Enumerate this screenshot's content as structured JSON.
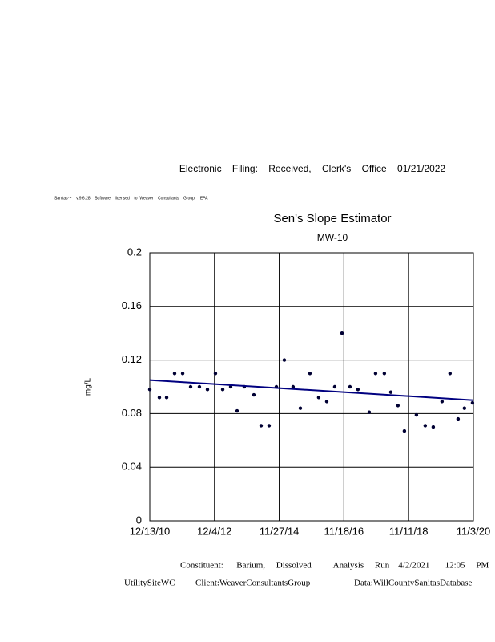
{
  "header": {
    "filing": "Electronic    Filing:    Received,    Clerk's    Office    01/21/2022",
    "license": "Sanitas™    v.9.6.28    Software    licensed    to  Weaver    Consultants    Group.    EPA"
  },
  "chart_data": {
    "type": "scatter",
    "title": "Sen's Slope Estimator",
    "subtitle": "MW-10",
    "y_label": "mg/L",
    "x": [
      "12/13/10",
      "3/30/11",
      "6/19/11",
      "9/16/11",
      "12/15/11",
      "3/13/12",
      "6/19/12",
      "9/17/12",
      "12/15/12",
      "3/6/13",
      "6/3/13",
      "8/14/13",
      "11/2/13",
      "2/17/14",
      "5/9/14",
      "8/6/14",
      "10/26/14",
      "1/23/15",
      "5/1/15",
      "7/21/15",
      "11/5/15",
      "2/11/16",
      "5/11/16",
      "8/8/16",
      "10/28/16",
      "1/25/17",
      "4/24/17",
      "8/28/17",
      "11/7/17",
      "2/13/18",
      "4/26/18",
      "7/15/18",
      "9/25/18",
      "2/6/19",
      "5/15/19",
      "8/13/19",
      "11/19/19",
      "2/16/20",
      "5/16/20",
      "7/26/20",
      "10/24/20"
    ],
    "values": [
      0.098,
      0.092,
      0.092,
      0.11,
      0.11,
      0.1,
      0.1,
      0.098,
      0.11,
      0.098,
      0.1,
      0.082,
      0.1,
      0.094,
      0.071,
      0.071,
      0.1,
      0.12,
      0.1,
      0.084,
      0.11,
      0.092,
      0.089,
      0.1,
      0.14,
      0.1,
      0.098,
      0.081,
      0.11,
      0.11,
      0.096,
      0.086,
      0.067,
      0.079,
      0.071,
      0.07,
      0.089,
      0.11,
      0.076,
      0.084,
      0.088
    ],
    "color": "#000033",
    "trend": {
      "x": [
        "12/13/10",
        "11/3/20"
      ],
      "values": [
        0.105,
        0.09
      ],
      "color": "#000080"
    },
    "xlim": [
      "12/13/10",
      "11/3/20"
    ],
    "xticks": [
      "12/13/10",
      "12/4/12",
      "11/27/14",
      "11/18/16",
      "11/11/18",
      "11/3/20"
    ],
    "ylim": [
      0,
      0.2
    ],
    "yticks": [
      0,
      0.04,
      0.08,
      0.12,
      0.16,
      0.2
    ],
    "grid": true
  },
  "footer": {
    "analysis": "Constituent:      Barium,     Dissolved          Analysis     Run    4/2/2021       12:05     PM",
    "site": "UtilitySiteWC",
    "client": "Client:WeaverConsultantsGroup",
    "data": "Data:WillCountySanitasDatabase"
  }
}
